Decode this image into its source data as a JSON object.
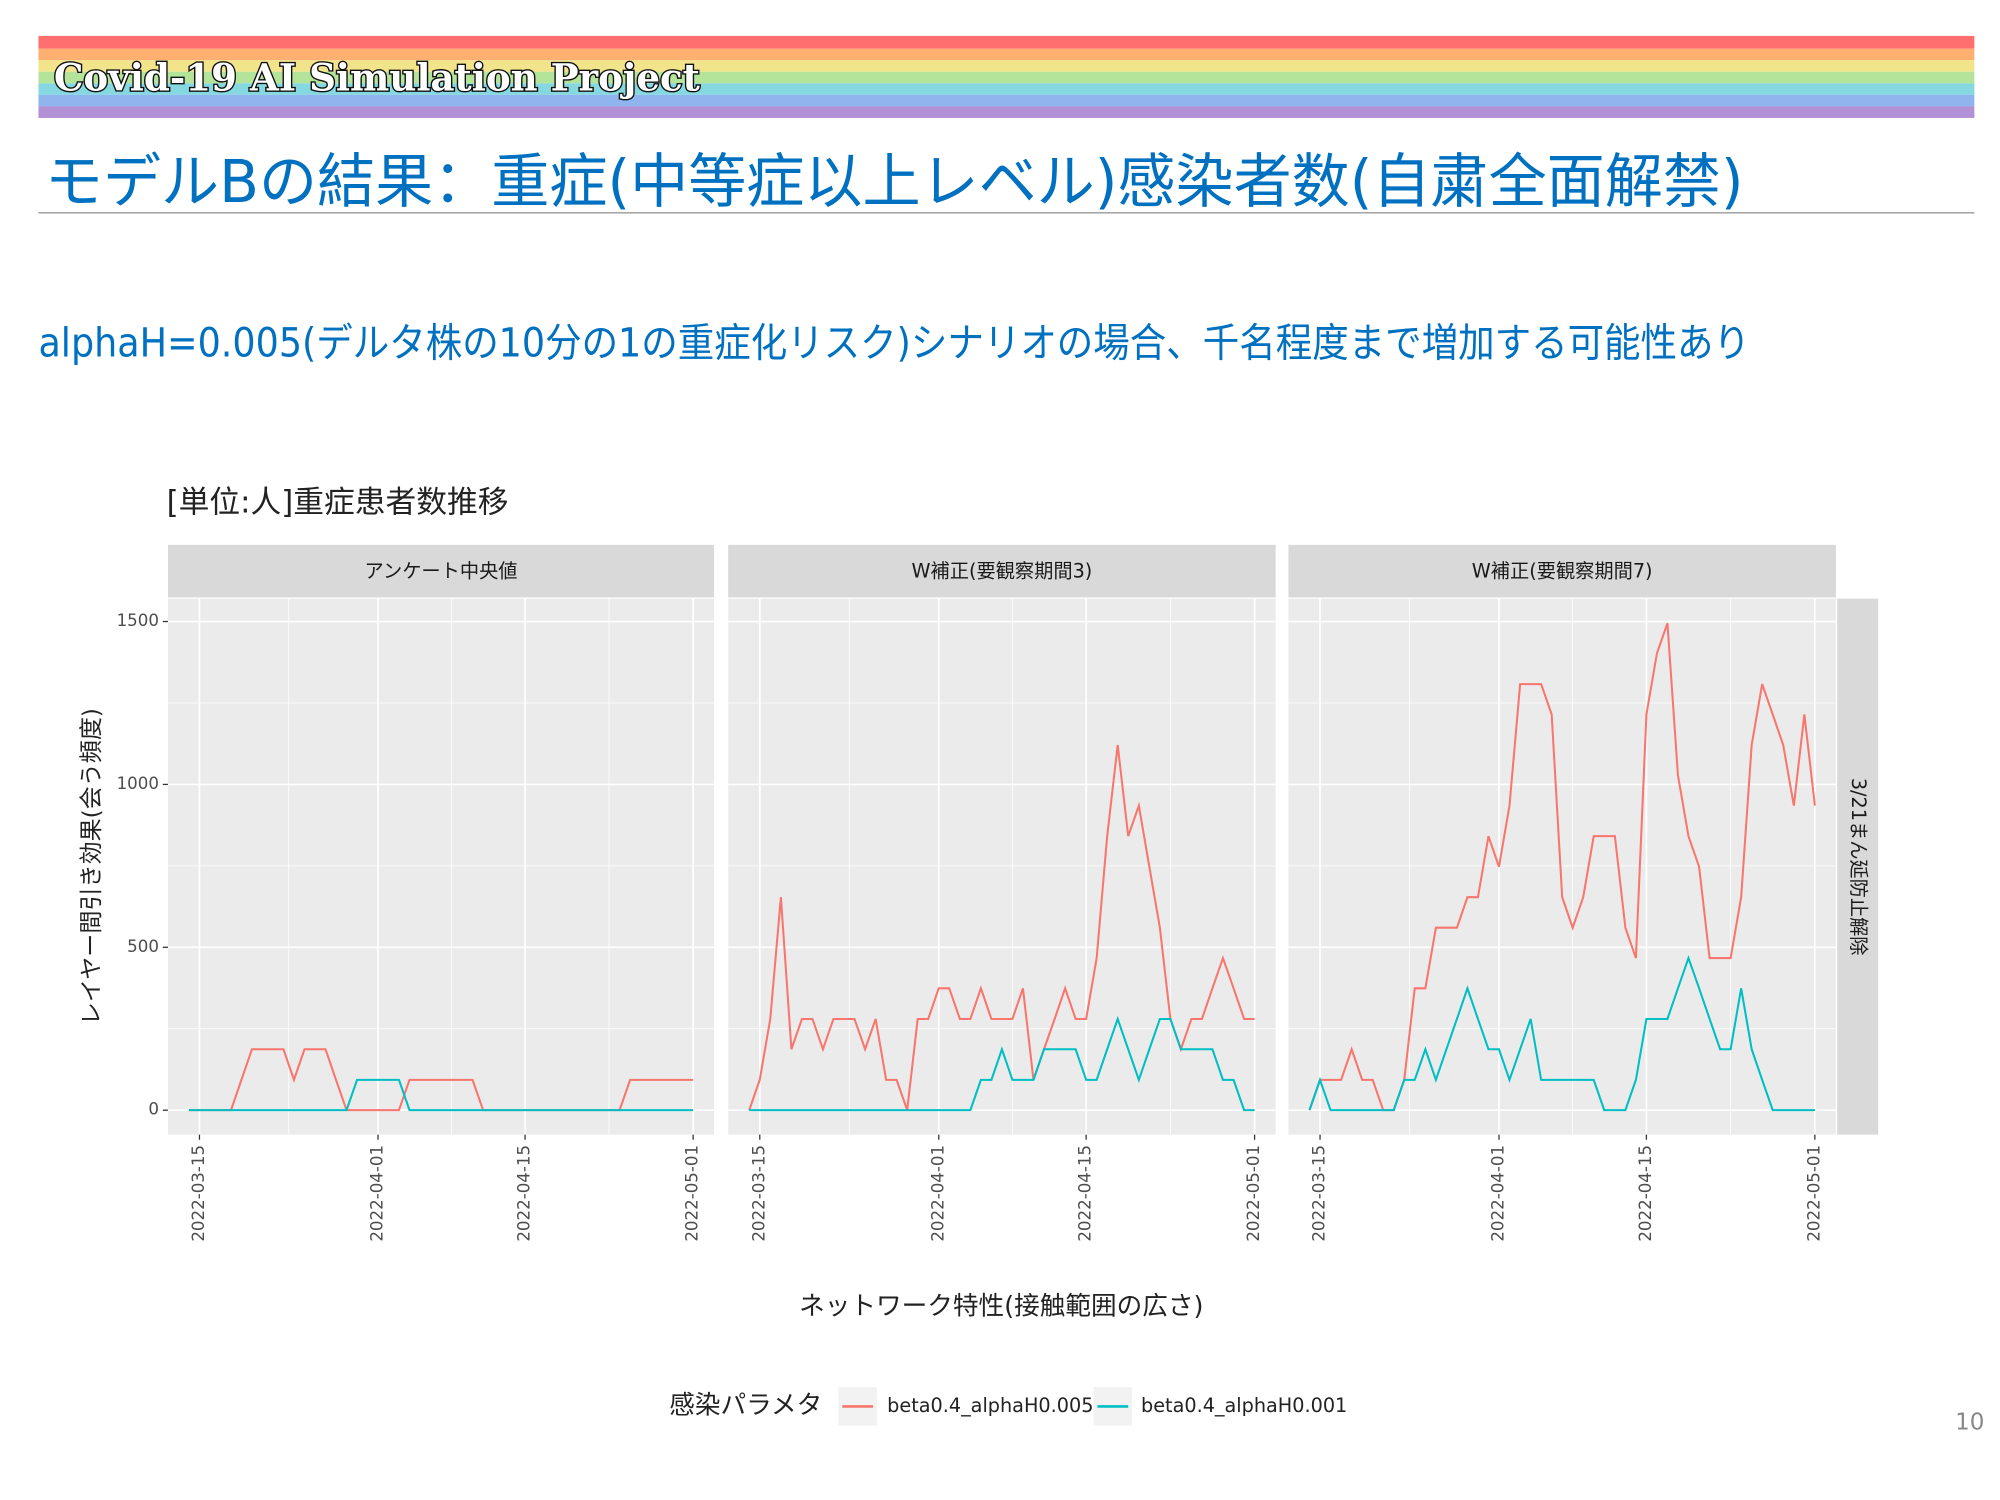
{
  "header": {
    "banner": "Covid-19 AI Simulation Project",
    "title": "モデルBの結果：重症(中等症以上レベル)感染者数(自粛全面解禁)",
    "subtitle": "alphaH=0.005(デルタ株の10分の1の重症化リスク)シナリオの場合、千名程度まで増加する可能性あり"
  },
  "page_number": "10",
  "figure": {
    "title": "[単位:人]重症患者数推移",
    "y_label": "レイヤー間引き効果(会う頻度)",
    "x_label": "ネットワーク特性(接触範囲の広さ)",
    "legend_title": "感染パラメタ",
    "facet_row_label": "3/21まん延防止解除"
  },
  "chart_data": [
    {
      "type": "line",
      "title": "アンケート中央値",
      "x": [
        "2022-03-14",
        "2022-03-15",
        "2022-03-16",
        "2022-03-17",
        "2022-03-18",
        "2022-03-19",
        "2022-03-20",
        "2022-03-21",
        "2022-03-22",
        "2022-03-23",
        "2022-03-24",
        "2022-03-25",
        "2022-03-26",
        "2022-03-27",
        "2022-03-28",
        "2022-03-29",
        "2022-03-30",
        "2022-03-31",
        "2022-04-01",
        "2022-04-02",
        "2022-04-03",
        "2022-04-04",
        "2022-04-05",
        "2022-04-06",
        "2022-04-07",
        "2022-04-08",
        "2022-04-09",
        "2022-04-10",
        "2022-04-11",
        "2022-04-12",
        "2022-04-13",
        "2022-04-14",
        "2022-04-15",
        "2022-04-16",
        "2022-04-17",
        "2022-04-18",
        "2022-04-19",
        "2022-04-20",
        "2022-04-21",
        "2022-04-22",
        "2022-04-23",
        "2022-04-24",
        "2022-04-25",
        "2022-04-26",
        "2022-04-27",
        "2022-04-28",
        "2022-04-29",
        "2022-04-30",
        "2022-05-01"
      ],
      "series": [
        {
          "name": "beta0.4_alphaH0.005",
          "color": "#F8766D",
          "values": [
            0,
            0,
            0,
            0,
            0,
            93,
            187,
            187,
            187,
            187,
            93,
            187,
            187,
            187,
            93,
            0,
            0,
            0,
            0,
            0,
            0,
            93,
            93,
            93,
            93,
            93,
            93,
            93,
            0,
            0,
            0,
            0,
            0,
            0,
            0,
            0,
            0,
            0,
            0,
            0,
            0,
            0,
            93,
            93,
            93,
            93,
            93,
            93,
            93
          ]
        },
        {
          "name": "beta0.4_alphaH0.001",
          "color": "#00BFC4",
          "values": [
            0,
            0,
            0,
            0,
            0,
            0,
            0,
            0,
            0,
            0,
            0,
            0,
            0,
            0,
            0,
            0,
            93,
            93,
            93,
            93,
            93,
            0,
            0,
            0,
            0,
            0,
            0,
            0,
            0,
            0,
            0,
            0,
            0,
            0,
            0,
            0,
            0,
            0,
            0,
            0,
            0,
            0,
            0,
            0,
            0,
            0,
            0,
            0,
            0
          ]
        }
      ],
      "xlim": [
        "2022-03-12",
        "2022-05-03"
      ],
      "xticks": [
        "2022-03-15",
        "2022-04-01",
        "2022-04-15",
        "2022-05-01"
      ],
      "ylim": [
        -75,
        1570
      ],
      "yticks": [
        0,
        500,
        1000,
        1500
      ]
    },
    {
      "type": "line",
      "title": "W補正(要観察期間3)",
      "x": [
        "2022-03-14",
        "2022-03-15",
        "2022-03-16",
        "2022-03-17",
        "2022-03-18",
        "2022-03-19",
        "2022-03-20",
        "2022-03-21",
        "2022-03-22",
        "2022-03-23",
        "2022-03-24",
        "2022-03-25",
        "2022-03-26",
        "2022-03-27",
        "2022-03-28",
        "2022-03-29",
        "2022-03-30",
        "2022-03-31",
        "2022-04-01",
        "2022-04-02",
        "2022-04-03",
        "2022-04-04",
        "2022-04-05",
        "2022-04-06",
        "2022-04-07",
        "2022-04-08",
        "2022-04-09",
        "2022-04-10",
        "2022-04-11",
        "2022-04-12",
        "2022-04-13",
        "2022-04-14",
        "2022-04-15",
        "2022-04-16",
        "2022-04-17",
        "2022-04-18",
        "2022-04-19",
        "2022-04-20",
        "2022-04-21",
        "2022-04-22",
        "2022-04-23",
        "2022-04-24",
        "2022-04-25",
        "2022-04-26",
        "2022-04-27",
        "2022-04-28",
        "2022-04-29",
        "2022-04-30",
        "2022-05-01"
      ],
      "series": [
        {
          "name": "beta0.4_alphaH0.005",
          "color": "#F8766D",
          "values": [
            0,
            93,
            280,
            654,
            187,
            280,
            280,
            187,
            280,
            280,
            280,
            187,
            280,
            93,
            93,
            0,
            280,
            280,
            374,
            374,
            280,
            280,
            374,
            280,
            280,
            280,
            374,
            93,
            187,
            280,
            374,
            280,
            280,
            467,
            841,
            1121,
            841,
            935,
            747,
            560,
            280,
            187,
            280,
            280,
            374,
            467,
            374,
            280,
            280
          ]
        },
        {
          "name": "beta0.4_alphaH0.001",
          "color": "#00BFC4",
          "values": [
            0,
            0,
            0,
            0,
            0,
            0,
            0,
            0,
            0,
            0,
            0,
            0,
            0,
            0,
            0,
            0,
            0,
            0,
            0,
            0,
            0,
            0,
            93,
            93,
            187,
            93,
            93,
            93,
            187,
            187,
            187,
            187,
            93,
            93,
            187,
            280,
            187,
            93,
            187,
            280,
            280,
            187,
            187,
            187,
            187,
            93,
            93,
            0,
            0
          ]
        }
      ],
      "xlim": [
        "2022-03-12",
        "2022-05-03"
      ],
      "xticks": [
        "2022-03-15",
        "2022-04-01",
        "2022-04-15",
        "2022-05-01"
      ],
      "ylim": [
        -75,
        1570
      ],
      "yticks": [
        0,
        500,
        1000,
        1500
      ]
    },
    {
      "type": "line",
      "title": "W補正(要観察期間7)",
      "x": [
        "2022-03-14",
        "2022-03-15",
        "2022-03-16",
        "2022-03-17",
        "2022-03-18",
        "2022-03-19",
        "2022-03-20",
        "2022-03-21",
        "2022-03-22",
        "2022-03-23",
        "2022-03-24",
        "2022-03-25",
        "2022-03-26",
        "2022-03-27",
        "2022-03-28",
        "2022-03-29",
        "2022-03-30",
        "2022-03-31",
        "2022-04-01",
        "2022-04-02",
        "2022-04-03",
        "2022-04-04",
        "2022-04-05",
        "2022-04-06",
        "2022-04-07",
        "2022-04-08",
        "2022-04-09",
        "2022-04-10",
        "2022-04-11",
        "2022-04-12",
        "2022-04-13",
        "2022-04-14",
        "2022-04-15",
        "2022-04-16",
        "2022-04-17",
        "2022-04-18",
        "2022-04-19",
        "2022-04-20",
        "2022-04-21",
        "2022-04-22",
        "2022-04-23",
        "2022-04-24",
        "2022-04-25",
        "2022-04-26",
        "2022-04-27",
        "2022-04-28",
        "2022-04-29",
        "2022-04-30",
        "2022-05-01"
      ],
      "series": [
        {
          "name": "beta0.4_alphaH0.005",
          "color": "#F8766D",
          "values": [
            0,
            93,
            93,
            93,
            187,
            93,
            93,
            0,
            0,
            93,
            374,
            374,
            560,
            560,
            560,
            654,
            654,
            841,
            747,
            935,
            1308,
            1308,
            1308,
            1215,
            654,
            560,
            654,
            841,
            841,
            841,
            560,
            467,
            1215,
            1402,
            1495,
            1028,
            841,
            747,
            467,
            467,
            467,
            654,
            1121,
            1308,
            1215,
            1121,
            935,
            1215,
            935
          ]
        },
        {
          "name": "beta0.4_alphaH0.001",
          "color": "#00BFC4",
          "values": [
            0,
            93,
            0,
            0,
            0,
            0,
            0,
            0,
            0,
            93,
            93,
            187,
            93,
            187,
            280,
            374,
            280,
            187,
            187,
            93,
            187,
            280,
            93,
            93,
            93,
            93,
            93,
            93,
            0,
            0,
            0,
            93,
            280,
            280,
            280,
            374,
            467,
            374,
            280,
            187,
            187,
            374,
            187,
            93,
            0,
            0,
            0,
            0,
            0
          ]
        }
      ],
      "xlim": [
        "2022-03-12",
        "2022-05-03"
      ],
      "xticks": [
        "2022-03-15",
        "2022-04-01",
        "2022-04-15",
        "2022-05-01"
      ],
      "ylim": [
        -75,
        1570
      ],
      "yticks": [
        0,
        500,
        1000,
        1500
      ]
    }
  ]
}
